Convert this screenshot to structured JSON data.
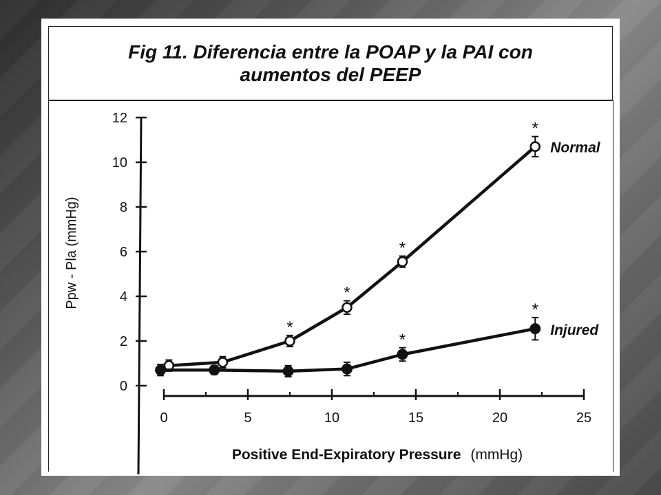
{
  "figure": {
    "title_line1": "Fig 11.  Diferencia entre la POAP y la PAI con",
    "title_line2": "aumentos del PEEP"
  },
  "chart_data": {
    "type": "line",
    "xlabel_bold": "Positive  End-Expiratory  Pressure",
    "xlabel_unit": "(mmHg)",
    "ylabel": "Ppw - Pla (mmHg)",
    "xlim": [
      0,
      25
    ],
    "ylim": [
      0,
      12
    ],
    "xticks": [
      0,
      5,
      10,
      15,
      20,
      25
    ],
    "yticks": [
      0,
      2,
      4,
      6,
      8,
      10,
      12
    ],
    "grid": false,
    "series": [
      {
        "name": "Normal",
        "marker": "open-circle",
        "x": [
          0.3,
          3.5,
          7.5,
          10.9,
          14.2,
          22.1
        ],
        "y": [
          0.9,
          1.05,
          2.0,
          3.5,
          5.55,
          10.7
        ],
        "err": [
          0.25,
          0.25,
          0.25,
          0.3,
          0.25,
          0.45
        ],
        "significant": [
          false,
          false,
          true,
          true,
          true,
          true
        ]
      },
      {
        "name": "Injured",
        "marker": "filled-circle",
        "x": [
          -0.2,
          3.0,
          7.4,
          10.9,
          14.2,
          22.1
        ],
        "y": [
          0.7,
          0.7,
          0.65,
          0.75,
          1.4,
          2.55
        ],
        "err": [
          0.25,
          0.2,
          0.25,
          0.3,
          0.3,
          0.5
        ],
        "significant": [
          false,
          false,
          false,
          false,
          true,
          true
        ]
      }
    ],
    "significance_marker": "*",
    "colors": {
      "ink": "#111111",
      "panel": "#ffffff"
    }
  }
}
